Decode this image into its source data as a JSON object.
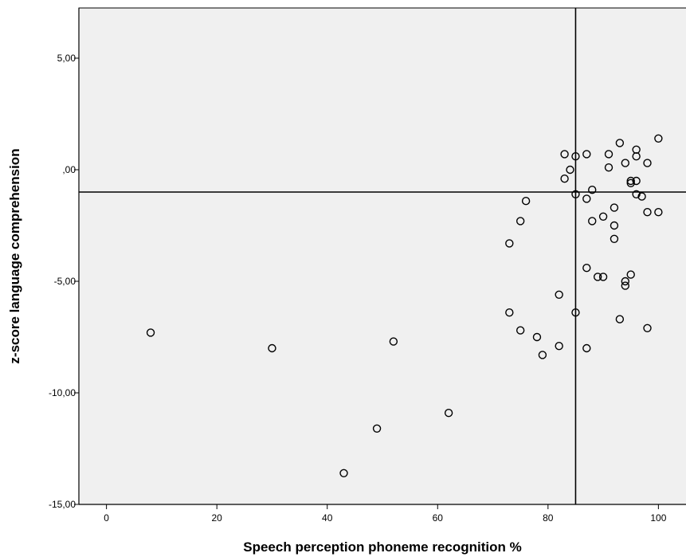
{
  "chart_data": {
    "type": "scatter",
    "title": "",
    "xlabel": "Speech perception phoneme recognition %",
    "ylabel": "z-score language comprehension",
    "xlim": [
      -5,
      105
    ],
    "ylim": [
      -15,
      7.25
    ],
    "x_ticks": [
      0,
      20,
      40,
      60,
      80,
      100
    ],
    "x_tick_labels": [
      "0",
      "20",
      "40",
      "60",
      "80",
      "100"
    ],
    "y_ticks": [
      5,
      0,
      -5,
      -10,
      -15
    ],
    "y_tick_labels": [
      "5,00",
      ",00",
      "-5,00",
      "-10,00",
      "-15,00"
    ],
    "reference_lines": {
      "x": 85,
      "y": -1.0
    },
    "grid": false,
    "legend": "none",
    "colors": {
      "background": "#f0f0f0",
      "marker_stroke": "#000000",
      "line": "#000000"
    },
    "series": [
      {
        "points": [
          [
            8,
            -7.3
          ],
          [
            30,
            -8.0
          ],
          [
            52,
            -7.7
          ],
          [
            62,
            -10.9
          ],
          [
            49,
            -11.6
          ],
          [
            43,
            -13.6
          ],
          [
            73,
            -3.3
          ],
          [
            73,
            -6.4
          ],
          [
            75,
            -2.3
          ],
          [
            75,
            -7.2
          ],
          [
            76,
            -1.4
          ],
          [
            78,
            -7.5
          ],
          [
            79,
            -8.3
          ],
          [
            82,
            -5.6
          ],
          [
            82,
            -7.9
          ],
          [
            83,
            0.7
          ],
          [
            83,
            -0.4
          ],
          [
            84,
            0.0
          ],
          [
            85,
            0.6
          ],
          [
            85,
            -1.1
          ],
          [
            85,
            -6.4
          ],
          [
            87,
            0.7
          ],
          [
            87,
            -1.3
          ],
          [
            87,
            -4.4
          ],
          [
            87,
            -8.0
          ],
          [
            88,
            -0.9
          ],
          [
            88,
            -2.3
          ],
          [
            89,
            -4.8
          ],
          [
            90,
            -2.1
          ],
          [
            90,
            -4.8
          ],
          [
            91,
            0.7
          ],
          [
            91,
            0.1
          ],
          [
            92,
            -1.7
          ],
          [
            92,
            -2.5
          ],
          [
            92,
            -3.1
          ],
          [
            93,
            1.2
          ],
          [
            93,
            -6.7
          ],
          [
            94,
            0.3
          ],
          [
            94,
            -5.0
          ],
          [
            94,
            -5.2
          ],
          [
            95,
            -0.5
          ],
          [
            95,
            -0.6
          ],
          [
            95,
            -4.7
          ],
          [
            96,
            0.9
          ],
          [
            96,
            0.6
          ],
          [
            96,
            -0.5
          ],
          [
            96,
            -1.1
          ],
          [
            97,
            -1.2
          ],
          [
            98,
            0.3
          ],
          [
            98,
            -1.9
          ],
          [
            98,
            -7.1
          ],
          [
            100,
            1.4
          ],
          [
            100,
            -1.9
          ]
        ]
      }
    ]
  }
}
